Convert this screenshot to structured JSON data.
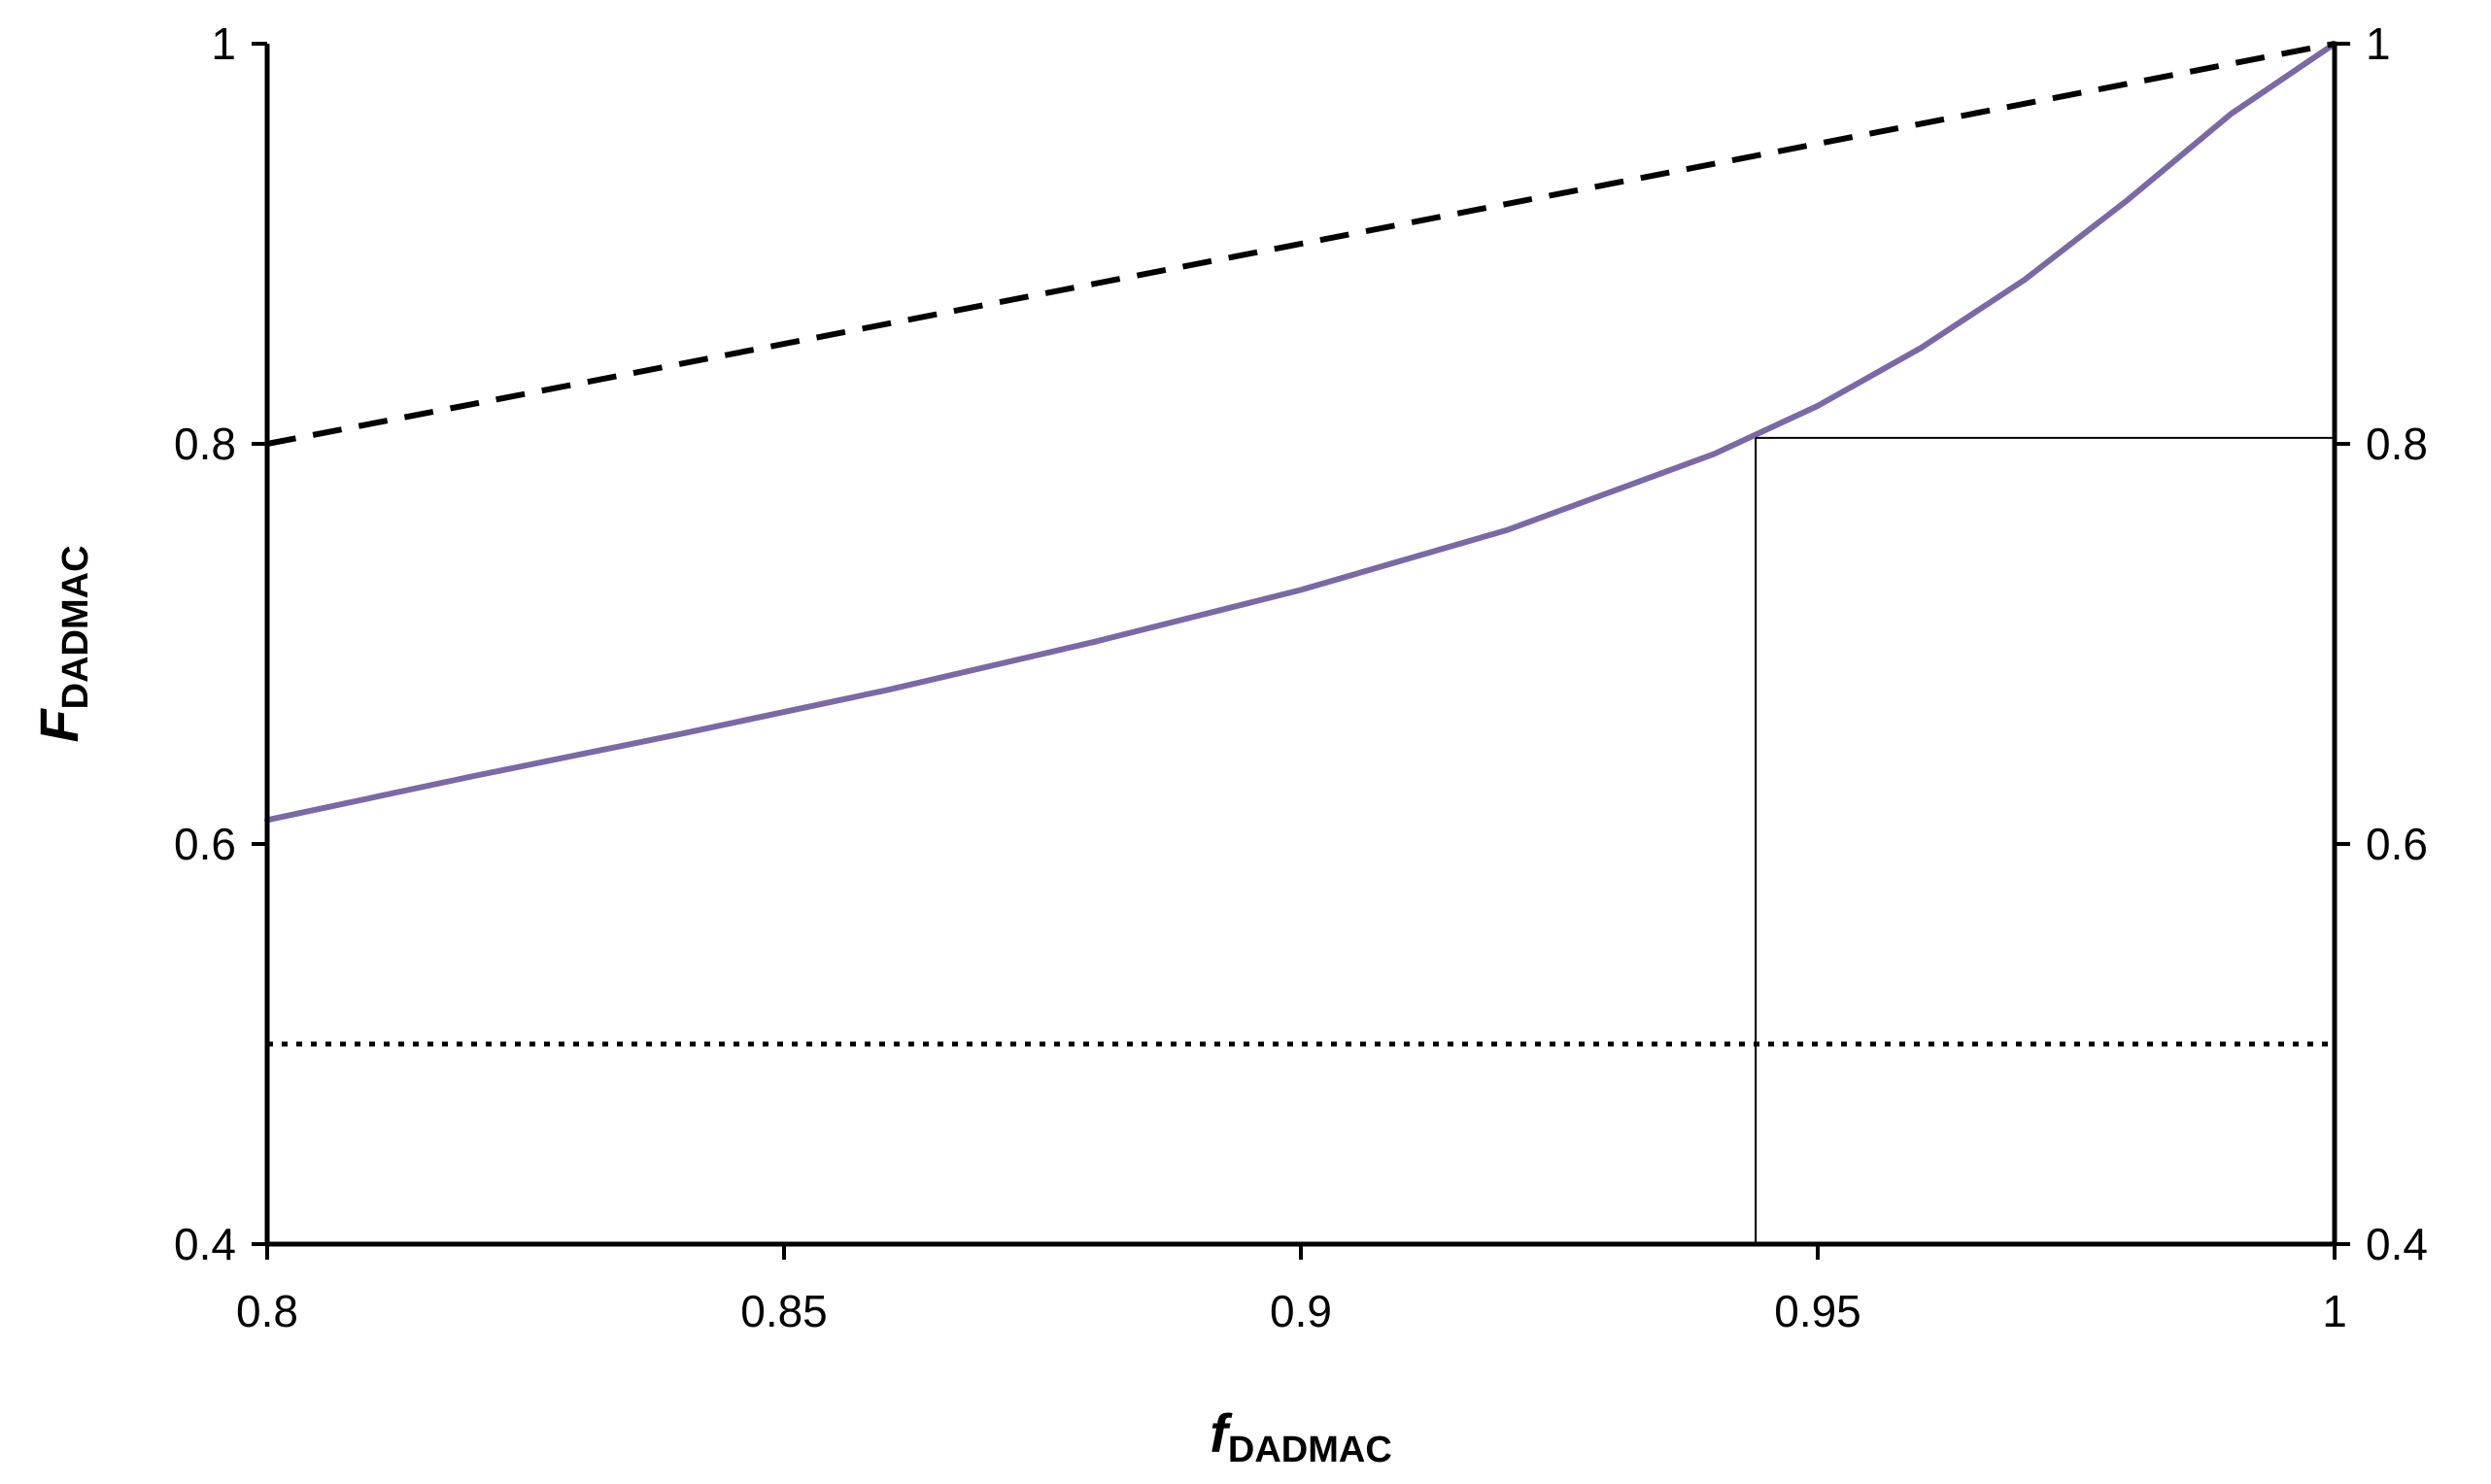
{
  "chart_data": {
    "type": "line",
    "xlabel": {
      "main": "f",
      "sub": "DADMAC"
    },
    "ylabel": {
      "main": "F",
      "sub": "DADMAC"
    },
    "xlim": [
      0.8,
      1.0
    ],
    "ylim": [
      0.4,
      1.0
    ],
    "x_ticks": [
      0.8,
      0.85,
      0.9,
      0.95,
      1.0
    ],
    "x_tick_labels": [
      "0.8",
      "0.85",
      "0.9",
      "0.95",
      "1"
    ],
    "y_ticks": [
      0.4,
      0.6,
      0.8,
      1.0
    ],
    "y_tick_labels": [
      "0.4",
      "0.6",
      "0.8",
      "1"
    ],
    "right_y_tick_labels": [
      "0.4",
      "0.6",
      "0.8",
      "1"
    ],
    "grid": false,
    "legend": "none",
    "series": [
      {
        "style": "solid",
        "color": "#7b68a6",
        "x": [
          0.8,
          0.82,
          0.84,
          0.86,
          0.88,
          0.9,
          0.92,
          0.94,
          0.95,
          0.96,
          0.97,
          0.98,
          0.99,
          1.0
        ],
        "y": [
          0.612,
          0.634,
          0.655,
          0.677,
          0.701,
          0.727,
          0.757,
          0.795,
          0.819,
          0.848,
          0.882,
          0.922,
          0.965,
          1.0
        ]
      },
      {
        "style": "dashed",
        "color": "#000000",
        "x": [
          0.8,
          1.0
        ],
        "y": [
          0.8,
          1.0
        ]
      },
      {
        "style": "dotted",
        "color": "#000000",
        "x": [
          0.8,
          1.0
        ],
        "y": [
          0.5,
          0.5
        ]
      }
    ],
    "annotation_lines": [
      {
        "type": "vertical",
        "x": 0.944,
        "y_from": 0.4,
        "y_to": 0.803
      },
      {
        "type": "horizontal",
        "y": 0.803,
        "x_from": 0.944,
        "x_to": 1.0
      }
    ]
  }
}
